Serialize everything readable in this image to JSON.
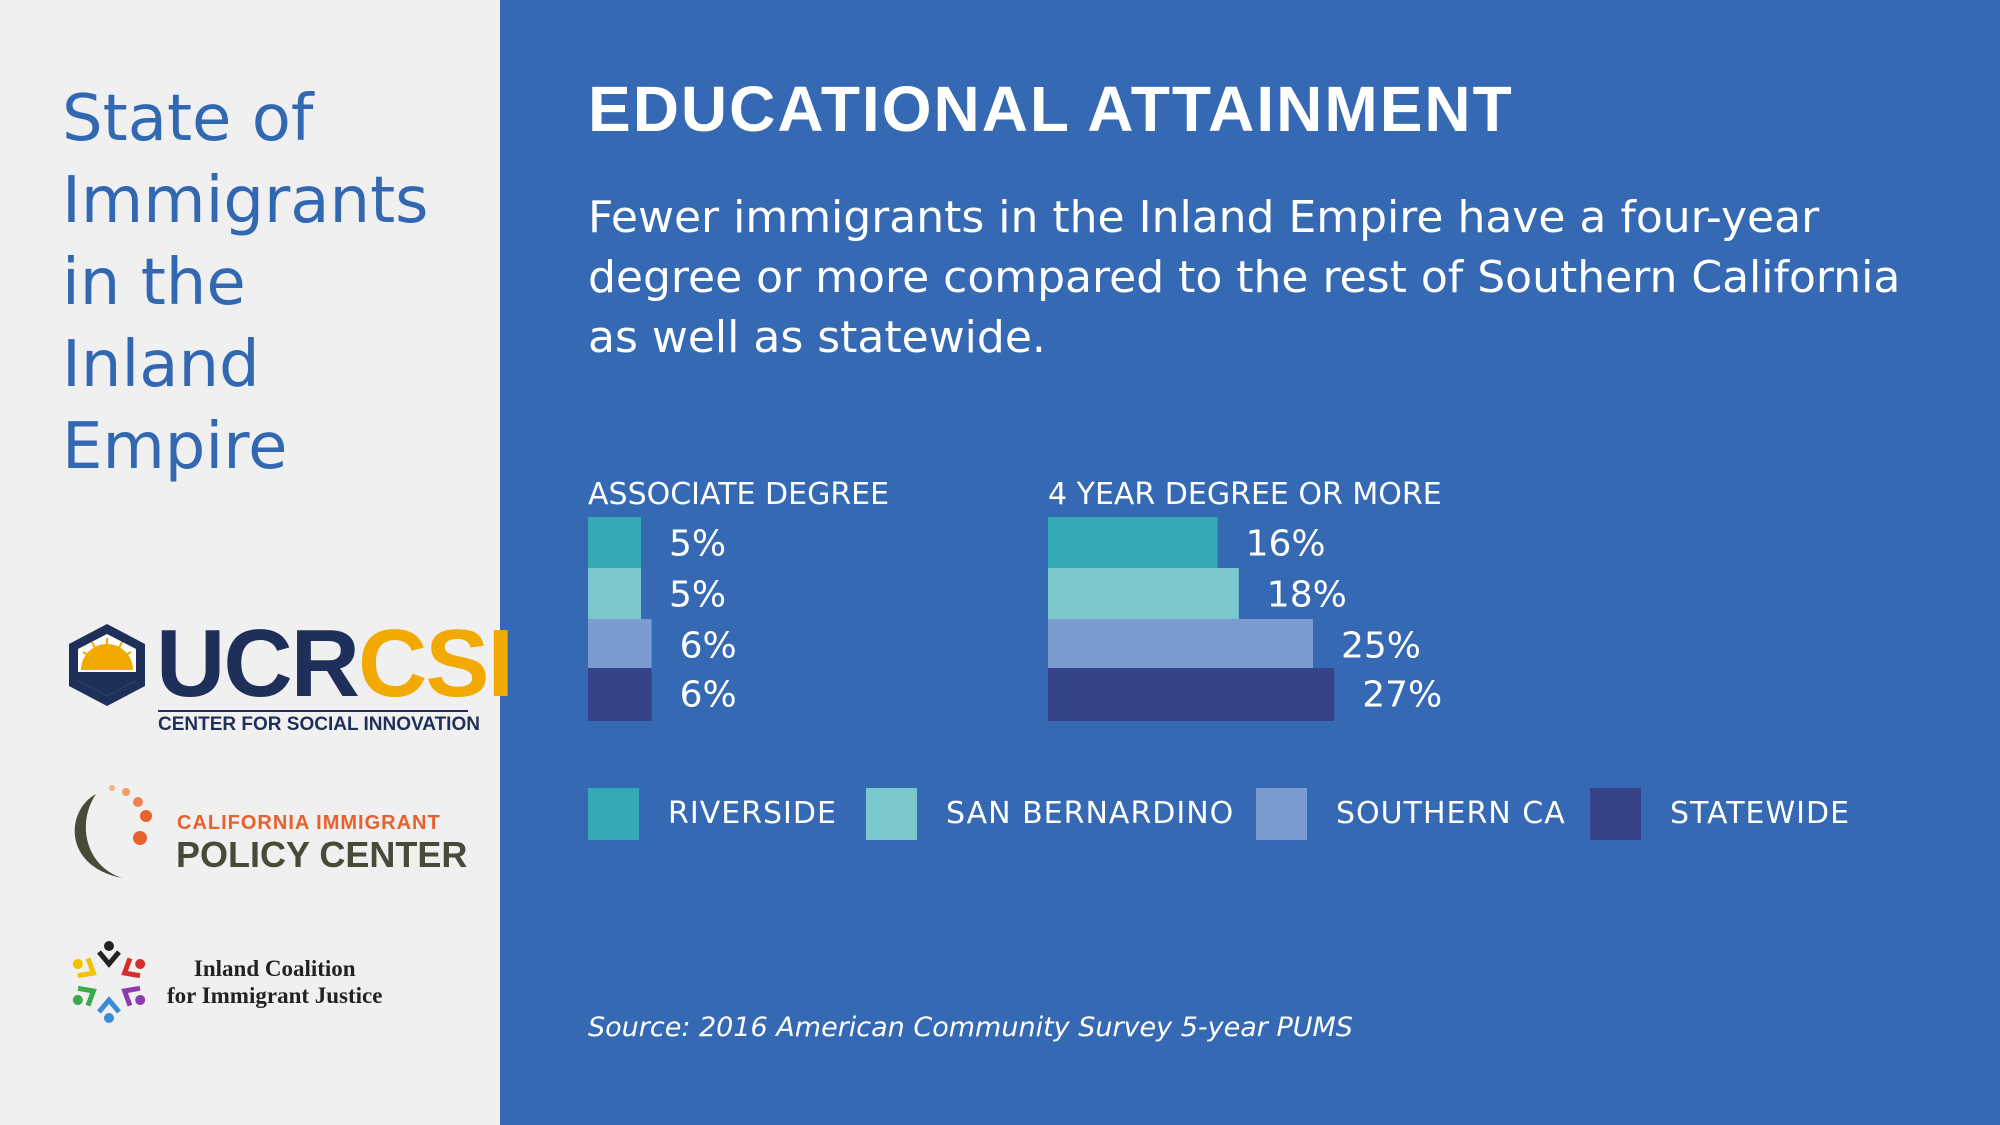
{
  "sidebar": {
    "title_lines": [
      "State of",
      "Immigrants",
      "in the",
      "Inland",
      "Empire"
    ],
    "logos": {
      "ucr": {
        "part1": "UCR",
        "part2": "CSI",
        "subtitle": "CENTER FOR SOCIAL INNOVATION"
      },
      "cipc": {
        "line1": "CALIFORNIA IMMIGRANT",
        "line2": "POLICY CENTER"
      },
      "icij": {
        "line1": "Inland Coalition",
        "line2": "for Immigrant Justice"
      }
    }
  },
  "colors": {
    "background": "#3569b3",
    "sidebar": "#f0f0f0",
    "riverside": "#33aab5",
    "san_bernardino": "#7ac8cb",
    "southern_ca": "#7a9cd1",
    "statewide": "#374388"
  },
  "chart_data": {
    "type": "bar",
    "orientation": "horizontal",
    "title": "EDUCATIONAL ATTAINMENT",
    "subtitle": "Fewer immigrants in the Inland Empire have a four-year degree or more compared to the rest of Southern California as well as statewide.",
    "groups": [
      {
        "label": "ASSOCIATE DEGREE",
        "series": [
          {
            "name": "RIVERSIDE",
            "value": 5,
            "label": "5%"
          },
          {
            "name": "SAN BERNARDINO",
            "value": 5,
            "label": "5%"
          },
          {
            "name": "SOUTHERN CA",
            "value": 6,
            "label": "6%"
          },
          {
            "name": "STATEWIDE",
            "value": 6,
            "label": "6%"
          }
        ]
      },
      {
        "label": "4 YEAR DEGREE OR MORE",
        "series": [
          {
            "name": "RIVERSIDE",
            "value": 16,
            "label": "16%"
          },
          {
            "name": "SAN BERNARDINO",
            "value": 18,
            "label": "18%"
          },
          {
            "name": "SOUTHERN CA",
            "value": 25,
            "label": "25%"
          },
          {
            "name": "STATEWIDE",
            "value": 27,
            "label": "27%"
          }
        ]
      }
    ],
    "legend": [
      "RIVERSIDE",
      "SAN BERNARDINO",
      "SOUTHERN CA",
      "STATEWIDE"
    ],
    "legend_position": "bottom",
    "grid": false,
    "source": "Source: 2016 American Community Survey 5-year PUMS"
  }
}
